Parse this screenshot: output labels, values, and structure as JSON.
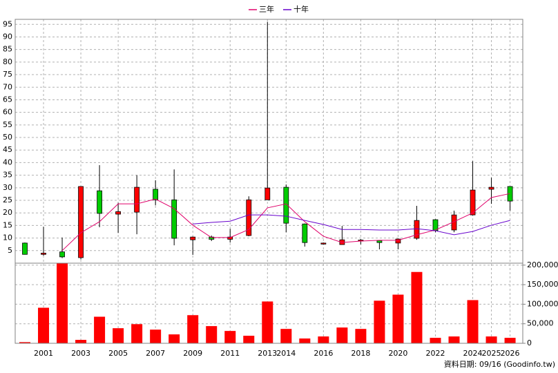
{
  "chart_data": [
    {
      "type": "candlestick",
      "open": [
        8,
        3.5,
        4.5,
        2.2,
        28.8,
        19.5,
        20.3,
        29.4,
        25.2,
        9.3,
        10.4,
        9.5,
        11,
        25.2,
        30.2,
        15.6,
        7.7,
        7.4,
        8.8,
        9,
        8,
        9.9,
        17.3,
        13.2,
        19.2,
        29.4,
        30.5
      ],
      "high": [
        8.2,
        14.5,
        10.2,
        30.5,
        39,
        24,
        35,
        33,
        37.3,
        10.6,
        11,
        13.7,
        26.6,
        96,
        31.3,
        15.8,
        8.2,
        14.8,
        9.6,
        9.2,
        9.8,
        22.8,
        17.5,
        20.9,
        40.6,
        34,
        30.6
      ],
      "low": [
        3.4,
        3,
        2,
        1.5,
        14.3,
        12,
        11.5,
        23,
        7.1,
        3.3,
        8.8,
        8.2,
        10.7,
        25.2,
        12.3,
        6.6,
        7.5,
        7.4,
        7.5,
        5.5,
        5.5,
        9.3,
        12.3,
        12.3,
        19,
        23.6,
        20.9
      ],
      "close": [
        3.5,
        4,
        2.5,
        30.5,
        19.8,
        20.5,
        30.2,
        25.2,
        9.9,
        10.4,
        9.5,
        10.4,
        25.2,
        29.9,
        15.9,
        8.2,
        8,
        9.3,
        9.2,
        8.2,
        9.6,
        17,
        12.9,
        19.2,
        29.1,
        30.2,
        24.7
      ],
      "up_color": "#ff0000",
      "down_color": "#00cc00",
      "series": [
        {
          "name": "三年",
          "color": "#e0006a",
          "values": [
            null,
            null,
            5,
            12.1,
            16.5,
            23.6,
            23.6,
            25.5,
            21.7,
            15.1,
            10.2,
            10.2,
            13.4,
            22,
            23.6,
            16.5,
            10.7,
            8.2,
            8.8,
            9.1,
            9.1,
            11.3,
            13.2,
            16.5,
            20,
            26.1,
            27.7
          ]
        },
        {
          "name": "十年",
          "color": "#6600cc",
          "values": [
            null,
            null,
            null,
            null,
            null,
            null,
            null,
            null,
            null,
            15.6,
            16.2,
            16.7,
            19.2,
            19.2,
            18.7,
            17,
            15.4,
            13.4,
            13.4,
            13.2,
            13.2,
            13.7,
            12.9,
            11.3,
            12.6,
            15.1,
            17
          ]
        }
      ],
      "ylim": [
        0,
        97
      ],
      "yticks": [
        5,
        10,
        15,
        20,
        25,
        30,
        35,
        40,
        45,
        50,
        55,
        60,
        65,
        70,
        75,
        80,
        85,
        90,
        95
      ],
      "grid": true
    },
    {
      "type": "bar",
      "categories": [
        null,
        "2001",
        null,
        "2003",
        null,
        "2005",
        null,
        "2007",
        null,
        "2009",
        null,
        "2011",
        null,
        "2013",
        "2014",
        null,
        "2016",
        null,
        "2018",
        null,
        "2020",
        null,
        "2022",
        null,
        "2024",
        "2025",
        "2026"
      ],
      "values": [
        3000,
        91000,
        205000,
        8800,
        68000,
        38600,
        49000,
        35000,
        22800,
        72000,
        44000,
        31600,
        19300,
        107000,
        36800,
        12300,
        17500,
        40400,
        36800,
        109000,
        124500,
        182500,
        14000,
        17500,
        110500,
        17500,
        14000
      ],
      "color": "#ff0000",
      "ylim": [
        0,
        205000
      ],
      "yticks": [
        0,
        {
          "value": 50000,
          "label": "50,000"
        },
        {
          "value": 100000,
          "label": "100,000"
        },
        {
          "value": 150000,
          "label": "150,000"
        },
        {
          "value": 200000,
          "label": "200,000"
        }
      ],
      "grid": true,
      "note": "資料日期: 09/16 (Goodinfo.tw)"
    }
  ]
}
